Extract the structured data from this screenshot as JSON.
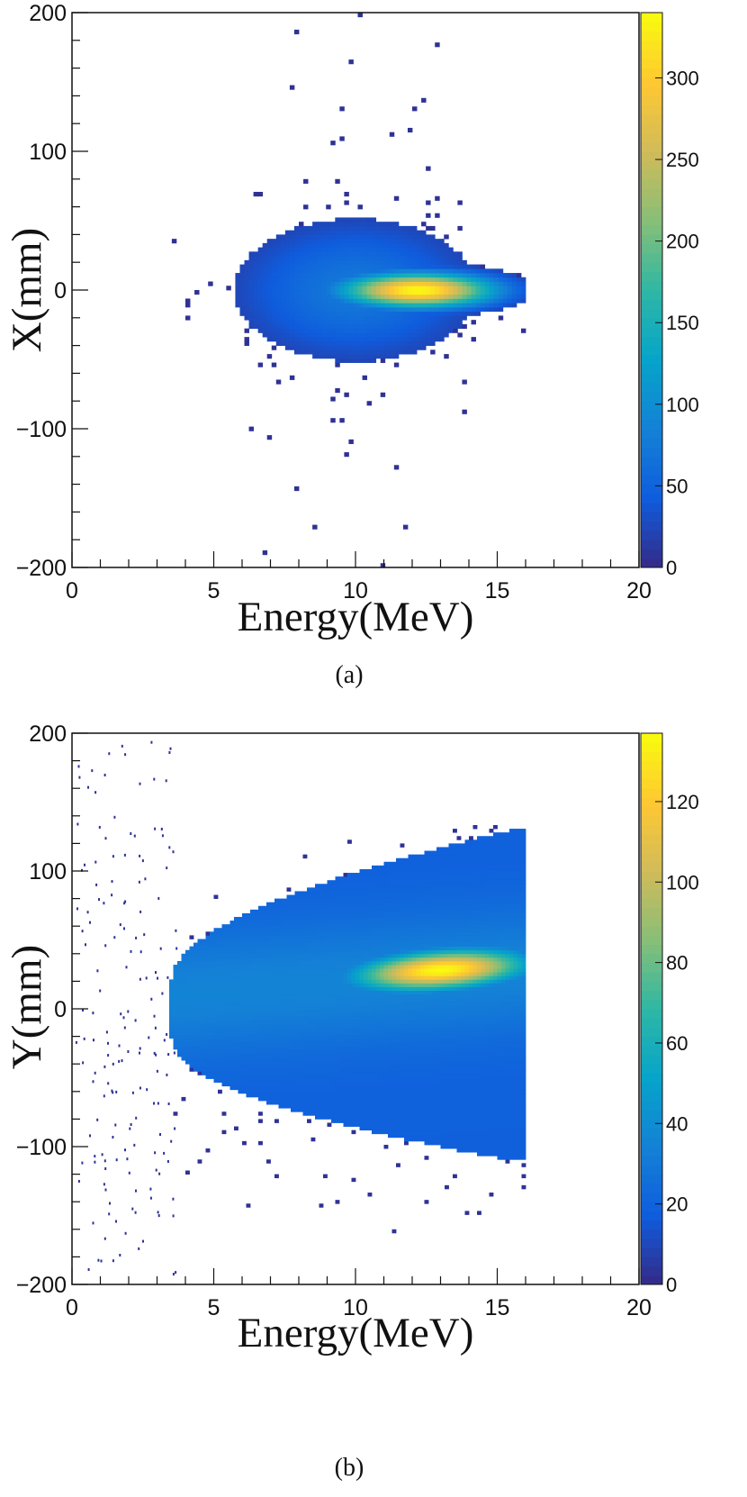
{
  "chart_data": [
    {
      "type": "heatmap",
      "panel_label": "(a)",
      "xlabel": "Energy(MeV)",
      "ylabel": "X(mm)",
      "xlim": [
        0,
        20
      ],
      "ylim": [
        -200,
        200
      ],
      "x_ticks": [
        "0",
        "5",
        "10",
        "15",
        "20"
      ],
      "y_ticks": [
        "−200",
        "−100",
        "0",
        "100",
        "200"
      ],
      "colorbar": {
        "min": 0,
        "max": 340,
        "ticks": [
          "0",
          "50",
          "100",
          "150",
          "200",
          "250",
          "300"
        ],
        "tick_values": [
          0,
          50,
          100,
          150,
          200,
          250,
          300
        ]
      },
      "distribution": {
        "peak_energy_mev": 12,
        "peak_position_mm": 0,
        "peak_count": 320,
        "energy_range_mev": [
          3.5,
          16
        ],
        "position_range_mm": [
          -200,
          200
        ]
      }
    },
    {
      "type": "heatmap",
      "panel_label": "(b)",
      "xlabel": "Energy(MeV)",
      "ylabel": "Y(mm)",
      "xlim": [
        0,
        20
      ],
      "ylim": [
        -200,
        200
      ],
      "x_ticks": [
        "0",
        "5",
        "10",
        "15",
        "20"
      ],
      "y_ticks": [
        "−200",
        "−100",
        "0",
        "100",
        "200"
      ],
      "colorbar": {
        "min": 0,
        "max": 137,
        "ticks": [
          "0",
          "20",
          "40",
          "60",
          "80",
          "100",
          "120"
        ],
        "tick_values": [
          0,
          20,
          40,
          60,
          80,
          100,
          120
        ]
      },
      "distribution": {
        "peak_energy_mev": 13,
        "peak_position_mm": 28,
        "peak_count": 125,
        "energy_range_mev": [
          3.5,
          16
        ],
        "position_range_mm": [
          -150,
          140
        ]
      }
    }
  ],
  "colors": {
    "colormap": [
      "#352a87",
      "#0f5cdd",
      "#1481d6",
      "#06a4ca",
      "#2eb7a4",
      "#87bf77",
      "#d1bb59",
      "#fec832",
      "#f9fb0e"
    ],
    "background": "#ffffff",
    "axis": "#111111"
  }
}
